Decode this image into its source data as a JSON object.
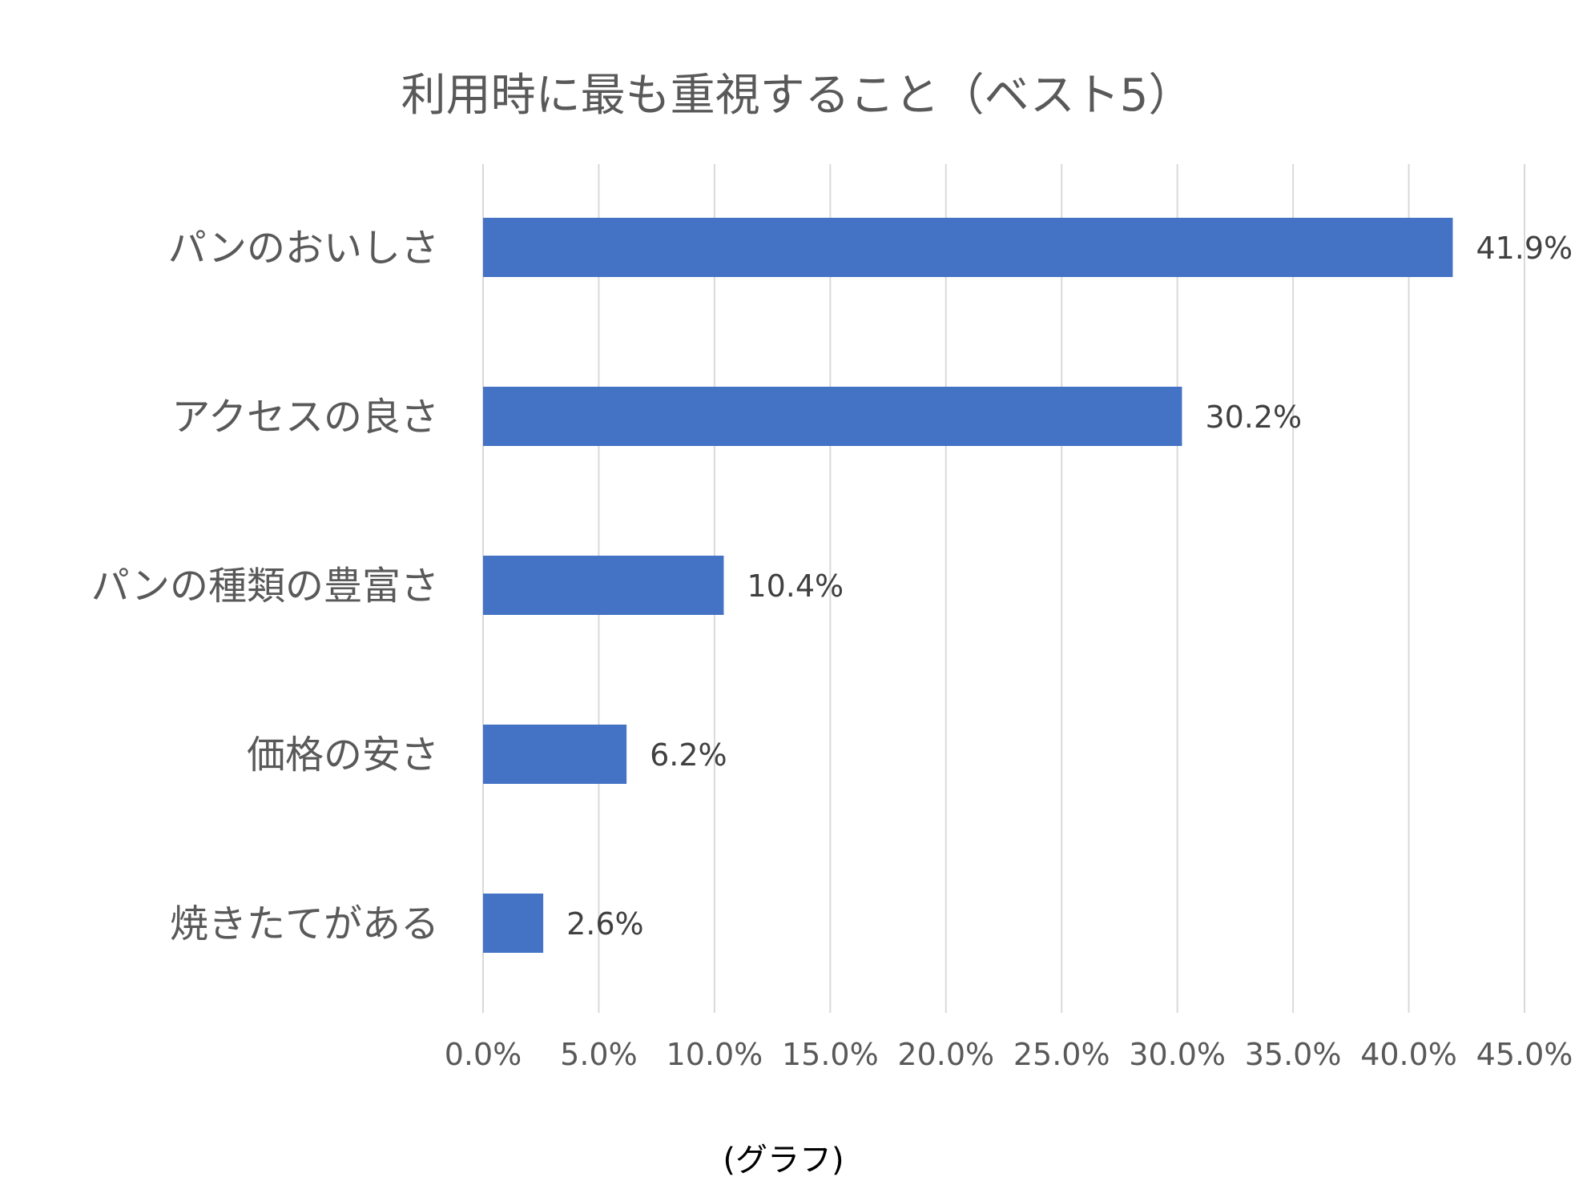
{
  "chart_data": {
    "type": "bar",
    "orientation": "horizontal",
    "title": "利用時に最も重視すること（ベスト5）",
    "categories": [
      "パンのおいしさ",
      "アクセスの良さ",
      "パンの種類の豊富さ",
      "価格の安さ",
      "焼きたてがある"
    ],
    "values": [
      41.9,
      30.2,
      10.4,
      6.2,
      2.6
    ],
    "value_labels": [
      "41.9%",
      "30.2%",
      "10.4%",
      "6.2%",
      "2.6%"
    ],
    "xlim": [
      0,
      45
    ],
    "xticks": [
      0,
      5,
      10,
      15,
      20,
      25,
      30,
      35,
      40,
      45
    ],
    "xtick_labels": [
      "0.0%",
      "5.0%",
      "10.0%",
      "15.0%",
      "20.0%",
      "25.0%",
      "30.0%",
      "35.0%",
      "40.0%",
      "45.0%"
    ],
    "grid": true,
    "xlabel": "",
    "ylabel": "",
    "caption": "(グラフ)",
    "colors": {
      "bar": "#4472C4",
      "grid": "#D9D9D9",
      "title": "#595959",
      "category_label": "#595959",
      "tick_label": "#595959",
      "value_label": "#404040",
      "caption": "#000000"
    }
  }
}
